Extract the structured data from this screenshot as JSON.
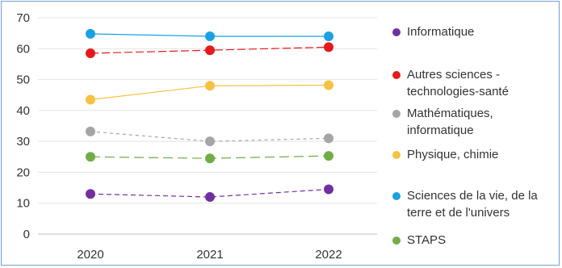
{
  "chart_data": {
    "type": "line",
    "title": "",
    "xlabel": "",
    "ylabel": "",
    "x": [
      "2020",
      "2021",
      "2022"
    ],
    "ylim": [
      0,
      70
    ],
    "yticks": [
      "0",
      "10",
      "20",
      "30",
      "40",
      "50",
      "60",
      "70"
    ],
    "grid": true,
    "legend_position": "right",
    "series": [
      {
        "name": "Informatique",
        "values": [
          13,
          12,
          14.5
        ],
        "color": "#7030a0",
        "dash": "6,4"
      },
      {
        "name": "Autres sciences -\ntechnologies-santé",
        "values": [
          58.5,
          59.5,
          60.5
        ],
        "color": "#e41a1c",
        "dash": "10,4"
      },
      {
        "name": "Mathématiques,\ninformatique",
        "values": [
          33.2,
          30,
          31
        ],
        "color": "#a5a5a5",
        "dash": "4,4"
      },
      {
        "name": "Physique, chimie",
        "values": [
          43.5,
          48,
          48.2
        ],
        "color": "#f5c242",
        "dash": ""
      },
      {
        "name": "Sciences de la vie, de la\nterre et de l'univers",
        "values": [
          64.8,
          64,
          64
        ],
        "color": "#1ba1e2",
        "dash": ""
      },
      {
        "name": "STAPS",
        "values": [
          25,
          24.5,
          25.3
        ],
        "color": "#70ad47",
        "dash": "12,6"
      }
    ]
  }
}
